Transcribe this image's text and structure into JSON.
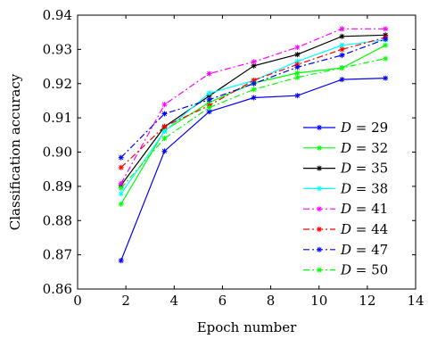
{
  "chart_data": {
    "type": "line",
    "xlabel": "Epoch number",
    "ylabel": "Classification accuracy",
    "xlim": [
      0,
      14
    ],
    "ylim": [
      0.86,
      0.94
    ],
    "xticks": [
      "0",
      "2",
      "4",
      "6",
      "8",
      "10",
      "12",
      "14"
    ],
    "yticks": [
      "0.86",
      "0.87",
      "0.88",
      "0.89",
      "0.90",
      "0.91",
      "0.92",
      "0.93",
      "0.94"
    ],
    "grid": false,
    "legend_position": "lower-right",
    "x": [
      1.8,
      3.6,
      5.45,
      7.3,
      9.1,
      10.95,
      12.75
    ],
    "series": [
      {
        "name": "D = 29",
        "var": "D",
        "eq": " = 29",
        "color": "#0000ff",
        "dash": "solid",
        "values": [
          0.8683,
          0.9003,
          0.9118,
          0.9159,
          0.9165,
          0.9212,
          0.9216
        ]
      },
      {
        "name": "D = 32",
        "var": "D",
        "eq": " = 32",
        "color": "#00ff00",
        "dash": "solid",
        "values": [
          0.8848,
          0.9063,
          0.9145,
          0.9202,
          0.9231,
          0.9246,
          0.9312
        ]
      },
      {
        "name": "D = 35",
        "var": "D",
        "eq": " = 35",
        "color": "#000000",
        "dash": "solid",
        "values": [
          0.8903,
          0.9074,
          0.9164,
          0.9252,
          0.9285,
          0.9338,
          0.9342
        ]
      },
      {
        "name": "D = 38",
        "var": "D",
        "eq": " = 38",
        "color": "#00ffff",
        "dash": "solid",
        "values": [
          0.8878,
          0.9061,
          0.9172,
          0.9209,
          0.9265,
          0.9312,
          0.9328
        ]
      },
      {
        "name": "D = 41",
        "var": "D",
        "eq": " = 41",
        "color": "#ff00ff",
        "dash": "dashdot",
        "values": [
          0.8908,
          0.9139,
          0.9229,
          0.9264,
          0.9306,
          0.936,
          0.936
        ]
      },
      {
        "name": "D = 44",
        "var": "D",
        "eq": " = 44",
        "color": "#ff0000",
        "dash": "dashdot",
        "values": [
          0.8955,
          0.9075,
          0.9136,
          0.921,
          0.9256,
          0.93,
          0.9335
        ]
      },
      {
        "name": "D = 47",
        "var": "D",
        "eq": " = 47",
        "color": "#0000ff",
        "dash": "dashdot",
        "values": [
          0.8984,
          0.9112,
          0.9153,
          0.92,
          0.9248,
          0.9283,
          0.933
        ]
      },
      {
        "name": "D = 50",
        "var": "D",
        "eq": " = 50",
        "color": "#00ff00",
        "dash": "dashdot",
        "values": [
          0.8895,
          0.904,
          0.913,
          0.9183,
          0.9218,
          0.9246,
          0.9273
        ]
      }
    ]
  }
}
